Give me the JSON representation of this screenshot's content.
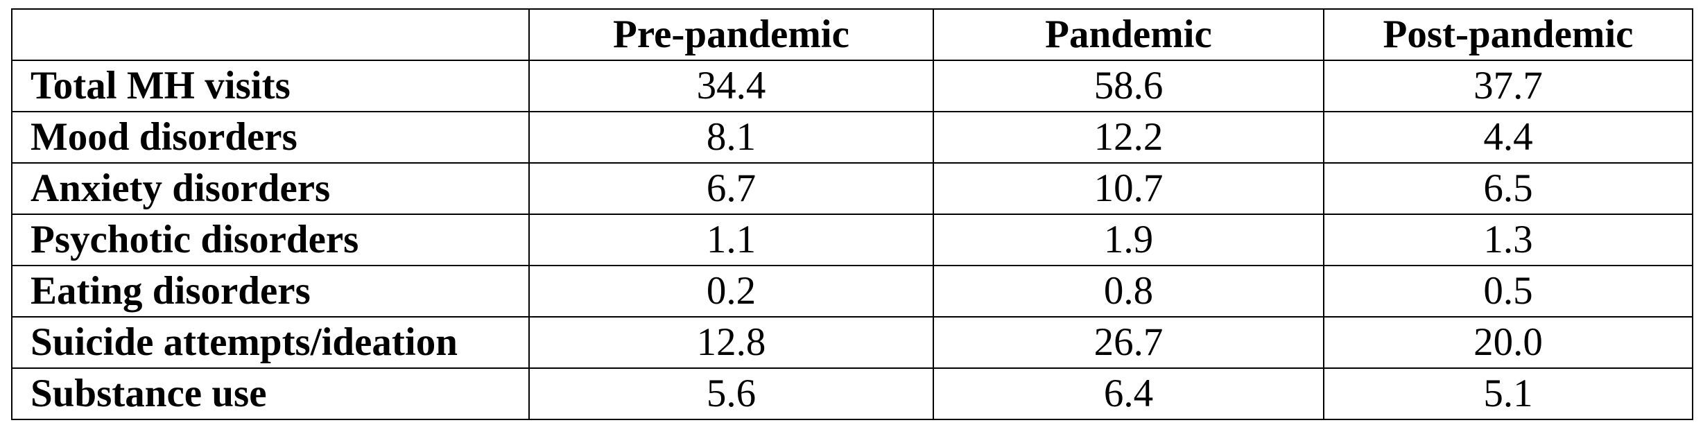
{
  "table": {
    "header": {
      "corner": "",
      "columns": [
        "Pre-pandemic",
        "Pandemic",
        "Post-pandemic"
      ]
    },
    "rows": [
      {
        "label": "Total MH visits",
        "values": [
          "34.4",
          "58.6",
          "37.7"
        ]
      },
      {
        "label": "Mood disorders",
        "values": [
          "8.1",
          "12.2",
          "4.4"
        ]
      },
      {
        "label": "Anxiety disorders",
        "values": [
          "6.7",
          "10.7",
          "6.5"
        ]
      },
      {
        "label": "Psychotic disorders",
        "values": [
          "1.1",
          "1.9",
          "1.3"
        ]
      },
      {
        "label": "Eating disorders",
        "values": [
          "0.2",
          "0.8",
          "0.5"
        ]
      },
      {
        "label": "Suicide attempts/ideation",
        "values": [
          "12.8",
          "26.7",
          "20.0"
        ]
      },
      {
        "label": "Substance use",
        "values": [
          "5.6",
          "6.4",
          "5.1"
        ]
      }
    ]
  }
}
